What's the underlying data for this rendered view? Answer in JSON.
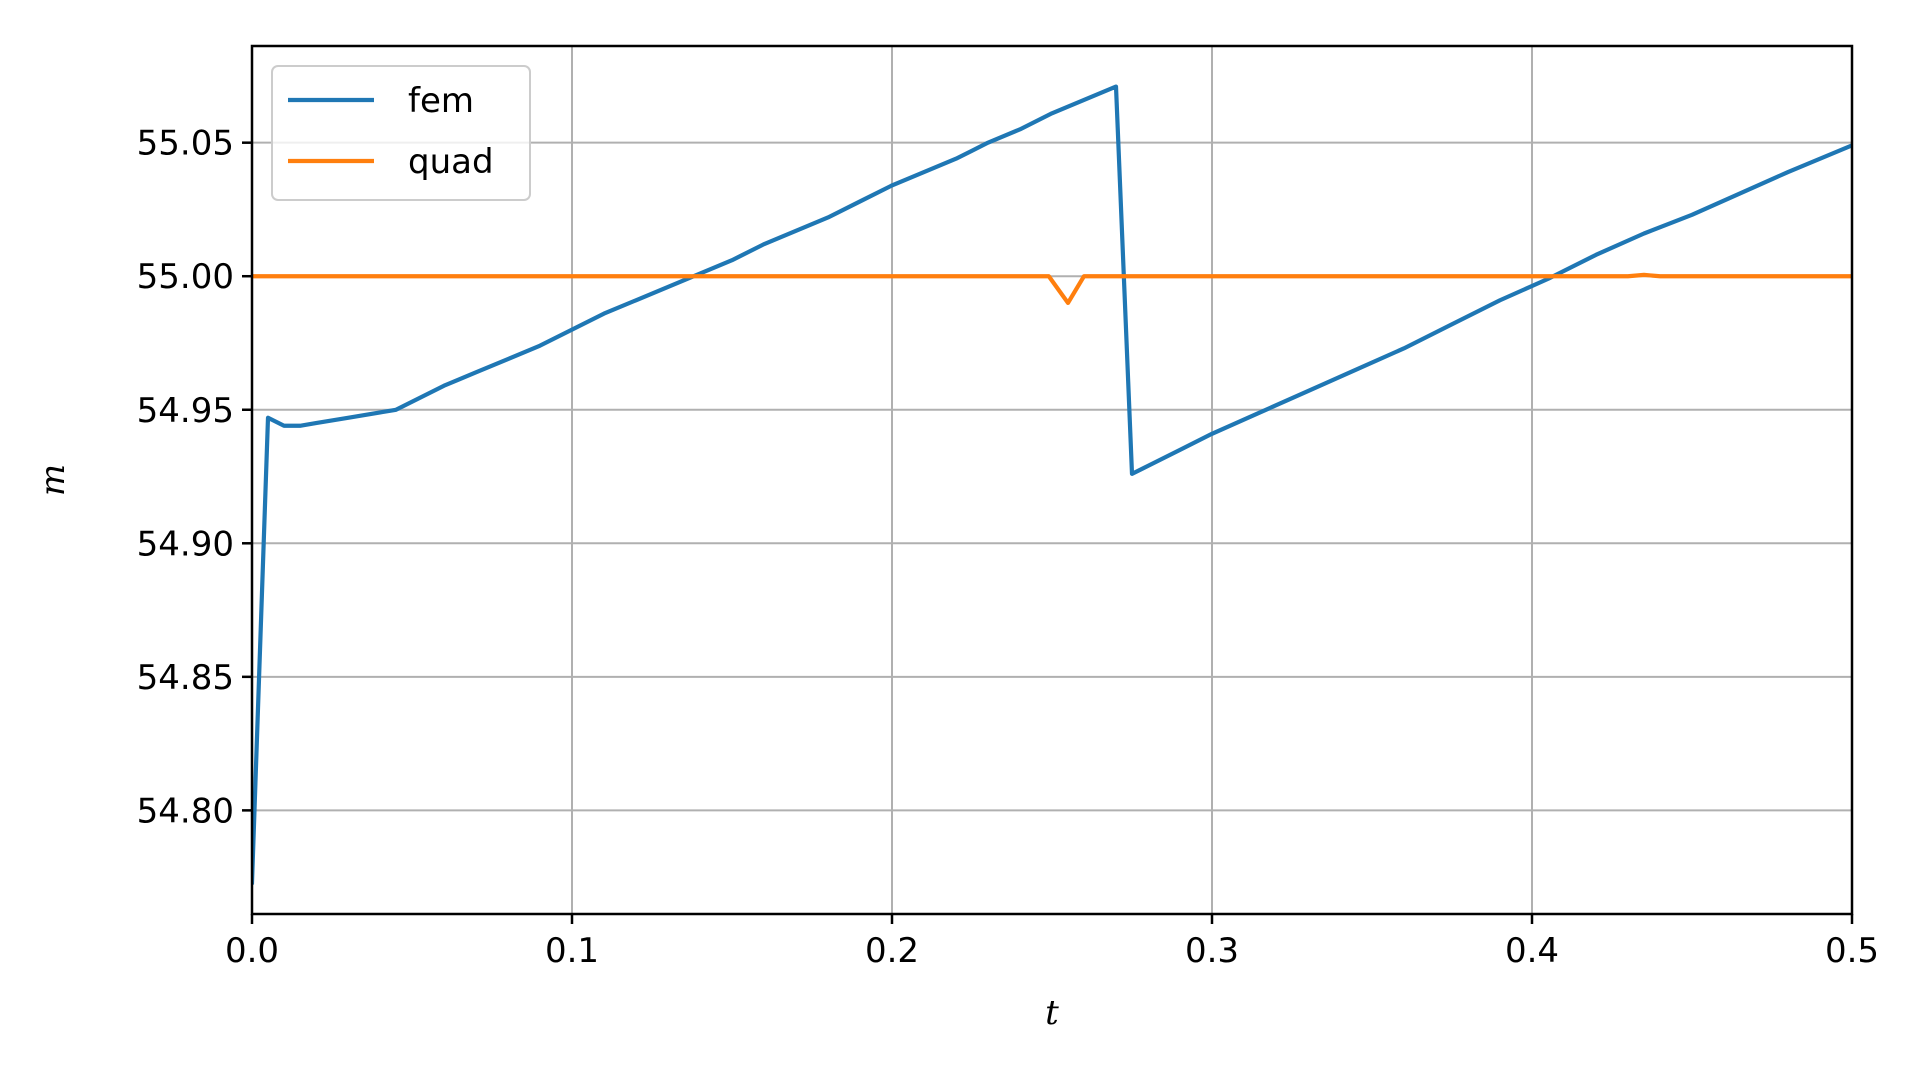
{
  "chart_data": {
    "type": "line",
    "xlabel": "t",
    "ylabel": "m",
    "xlim": [
      0.0,
      0.5
    ],
    "ylim": [
      54.7612,
      55.0862
    ],
    "grid": true,
    "legend_position": "top-left",
    "x_ticks": [
      0.0,
      0.1,
      0.2,
      0.3,
      0.4,
      0.5
    ],
    "x_tick_labels": [
      "0.0",
      "0.1",
      "0.2",
      "0.3",
      "0.4",
      "0.5"
    ],
    "y_ticks": [
      54.8,
      54.85,
      54.9,
      54.95,
      55.0,
      55.05
    ],
    "y_tick_labels": [
      "54.80",
      "54.85",
      "54.90",
      "54.95",
      "55.00",
      "55.05"
    ],
    "series": [
      {
        "name": "fem",
        "color": "#1f77b4",
        "x": [
          0.0,
          0.005,
          0.01,
          0.015,
          0.02,
          0.03,
          0.045,
          0.05,
          0.055,
          0.06,
          0.07,
          0.08,
          0.09,
          0.1,
          0.11,
          0.12,
          0.13,
          0.14,
          0.15,
          0.16,
          0.17,
          0.18,
          0.19,
          0.2,
          0.21,
          0.22,
          0.225,
          0.23,
          0.24,
          0.25,
          0.26,
          0.27,
          0.275,
          0.28,
          0.29,
          0.3,
          0.315,
          0.33,
          0.345,
          0.36,
          0.375,
          0.39,
          0.405,
          0.42,
          0.435,
          0.45,
          0.465,
          0.48,
          0.5
        ],
        "y": [
          54.773,
          54.947,
          54.944,
          54.944,
          54.945,
          54.947,
          54.95,
          54.953,
          54.956,
          54.959,
          54.964,
          54.969,
          54.974,
          54.98,
          54.986,
          54.991,
          54.996,
          55.001,
          55.006,
          55.012,
          55.017,
          55.022,
          55.028,
          55.034,
          55.039,
          55.044,
          55.047,
          55.05,
          55.055,
          55.061,
          55.066,
          55.071,
          54.926,
          54.929,
          54.935,
          54.941,
          54.949,
          54.957,
          54.965,
          54.973,
          54.982,
          54.991,
          54.999,
          55.008,
          55.016,
          55.023,
          55.031,
          55.039,
          55.049
        ]
      },
      {
        "name": "quad",
        "color": "#ff7f0e",
        "x": [
          0.0,
          0.1,
          0.2,
          0.249,
          0.255,
          0.26,
          0.3,
          0.4,
          0.43,
          0.435,
          0.44,
          0.5
        ],
        "y": [
          55.0,
          55.0,
          55.0,
          55.0,
          54.99,
          55.0,
          55.0,
          55.0,
          55.0,
          55.0005,
          55.0,
          55.0
        ]
      }
    ]
  }
}
